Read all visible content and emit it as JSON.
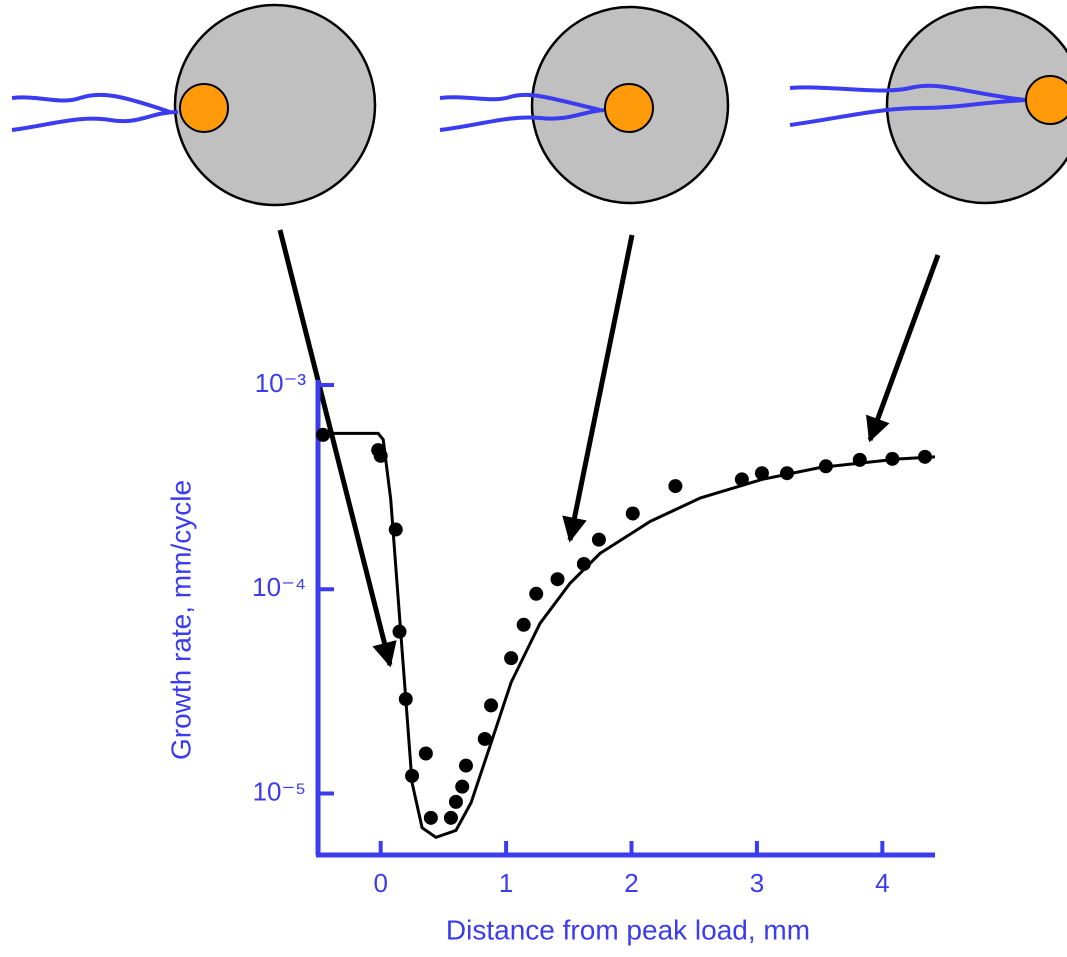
{
  "chart_data": {
    "type": "scatter",
    "x_label": "Distance from peak load, mm",
    "y_label": "Growth rate, mm/cycle",
    "xlim": [
      -0.5,
      4.42
    ],
    "xticks": [
      0,
      1,
      2,
      3,
      4
    ],
    "ylim": [
      5e-06,
      0.001
    ],
    "yscale": "log",
    "yticks": [
      {
        "value": 1e-05,
        "label": "10⁻⁵"
      },
      {
        "value": 0.0001,
        "label": "10⁻⁴"
      },
      {
        "value": 0.001,
        "label": "10⁻³"
      }
    ],
    "axis_color": "#3b3bf0",
    "series": [
      {
        "type": "scatter",
        "color": "#000000",
        "x": [
          -0.46,
          -0.02,
          0.0,
          0.12,
          0.15,
          0.2,
          0.25,
          0.36,
          0.4,
          0.56,
          0.6,
          0.65,
          0.68,
          0.83,
          0.88,
          1.04,
          1.14,
          1.24,
          1.41,
          1.62,
          1.74,
          2.01,
          2.35,
          2.88,
          3.04,
          3.24,
          3.55,
          3.82,
          4.08,
          4.34
        ],
        "values": [
          0.00057,
          0.00048,
          0.00045,
          0.000196,
          6.2e-05,
          2.9e-05,
          1.22e-05,
          1.57e-05,
          7.6e-06,
          7.6e-06,
          9.1e-06,
          1.08e-05,
          1.37e-05,
          1.85e-05,
          2.7e-05,
          4.6e-05,
          6.7e-05,
          9.5e-05,
          0.000112,
          0.000133,
          0.000175,
          0.000235,
          0.00032,
          0.000345,
          0.00037,
          0.00037,
          0.0004,
          0.00043,
          0.000435,
          0.000445
        ]
      },
      {
        "type": "line",
        "color": "#000000",
        "x": [
          -0.48,
          -0.02,
          0.02,
          0.08,
          0.14,
          0.2,
          0.25,
          0.33,
          0.44,
          0.6,
          0.72,
          0.88,
          1.04,
          1.27,
          1.51,
          1.75,
          2.15,
          2.55,
          3.04,
          3.51,
          4.14,
          4.42
        ],
        "values": [
          0.00058,
          0.00058,
          0.00054,
          0.000275,
          8.9e-05,
          2.9e-05,
          1.13e-05,
          6.8e-06,
          6.1e-06,
          6.6e-06,
          9e-06,
          1.77e-05,
          3.5e-05,
          6.8e-05,
          0.000107,
          0.00015,
          0.000215,
          0.00028,
          0.000345,
          0.000395,
          0.000435,
          0.000445
        ]
      }
    ]
  }
}
